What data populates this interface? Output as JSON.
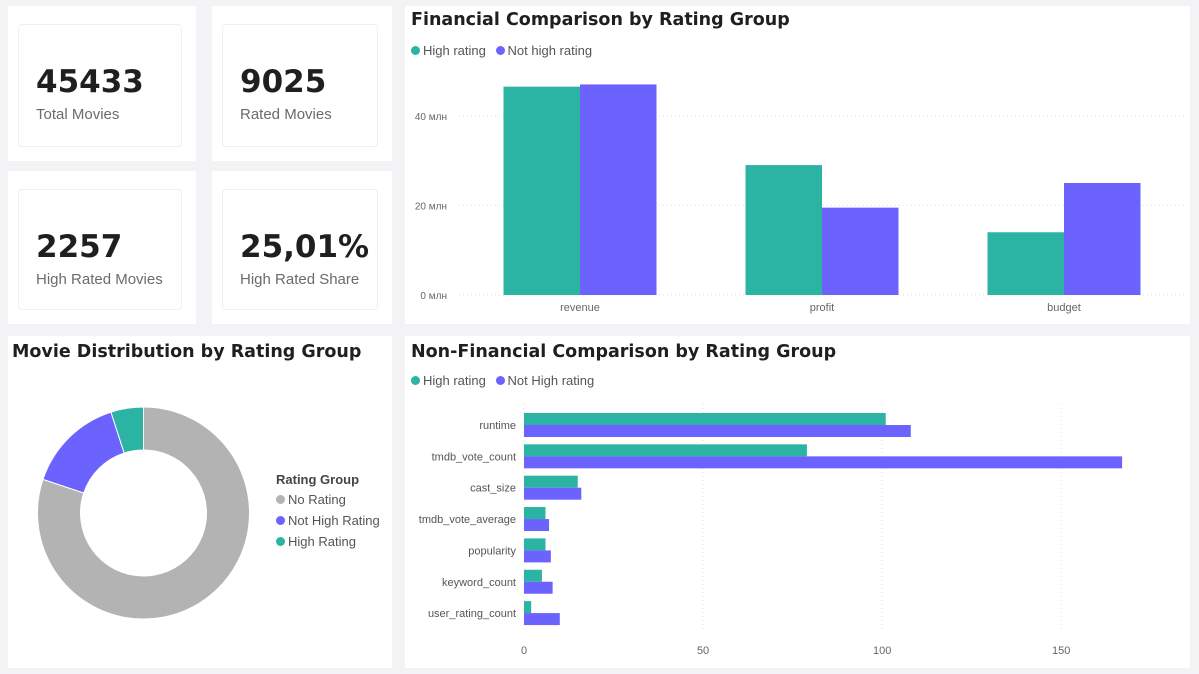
{
  "kpis": [
    {
      "value": "45433",
      "label": "Total Movies"
    },
    {
      "value": "9025",
      "label": "Rated Movies"
    },
    {
      "value": "2257",
      "label": "High Rated Movies"
    },
    {
      "value": "25,01%",
      "label": "High Rated Share"
    }
  ],
  "colors": {
    "high": "#2bb3a3",
    "not_high": "#6c63ff",
    "no_rating": "#b3b3b3"
  },
  "financial": {
    "title": "Financial Comparison by Rating Group",
    "legend": [
      "High rating",
      "Not high rating"
    ]
  },
  "distribution": {
    "title": "Movie Distribution by Rating Group",
    "legend_title": "Rating Group",
    "legend": [
      "No Rating",
      "Not High Rating",
      "High Rating"
    ]
  },
  "nonfinancial": {
    "title": "Non-Financial Comparison by Rating Group",
    "legend": [
      "High rating",
      "Not High rating"
    ]
  },
  "chart_data": [
    {
      "type": "bar",
      "title": "Financial Comparison by Rating Group",
      "categories": [
        "revenue",
        "profit",
        "budget"
      ],
      "series": [
        {
          "name": "High rating",
          "values": [
            46.5,
            29,
            14
          ]
        },
        {
          "name": "Not high rating",
          "values": [
            47,
            19.5,
            25
          ]
        }
      ],
      "ylim": [
        0,
        50
      ],
      "yticks": [
        0,
        20,
        40
      ],
      "ytick_labels": [
        "0 млн",
        "20 млн",
        "40 млн"
      ],
      "grid": true,
      "legend_position": "top-left"
    },
    {
      "type": "pie",
      "title": "Movie Distribution by Rating Group",
      "labels": [
        "No Rating",
        "Not High Rating",
        "High Rating"
      ],
      "values": [
        36408,
        6768,
        2257
      ]
    },
    {
      "type": "bar",
      "orientation": "horizontal",
      "title": "Non-Financial Comparison by Rating Group",
      "categories": [
        "runtime",
        "tmdb_vote_count",
        "cast_size",
        "tmdb_vote_average",
        "popularity",
        "keyword_count",
        "user_rating_count"
      ],
      "series": [
        {
          "name": "High rating",
          "values": [
            101,
            79,
            15,
            6,
            6,
            5,
            2
          ]
        },
        {
          "name": "Not High rating",
          "values": [
            108,
            167,
            16,
            7,
            7.5,
            8,
            10
          ]
        }
      ],
      "xlim": [
        0,
        172
      ],
      "xticks": [
        0,
        50,
        100,
        150
      ],
      "grid": true,
      "legend_position": "top-left"
    }
  ]
}
